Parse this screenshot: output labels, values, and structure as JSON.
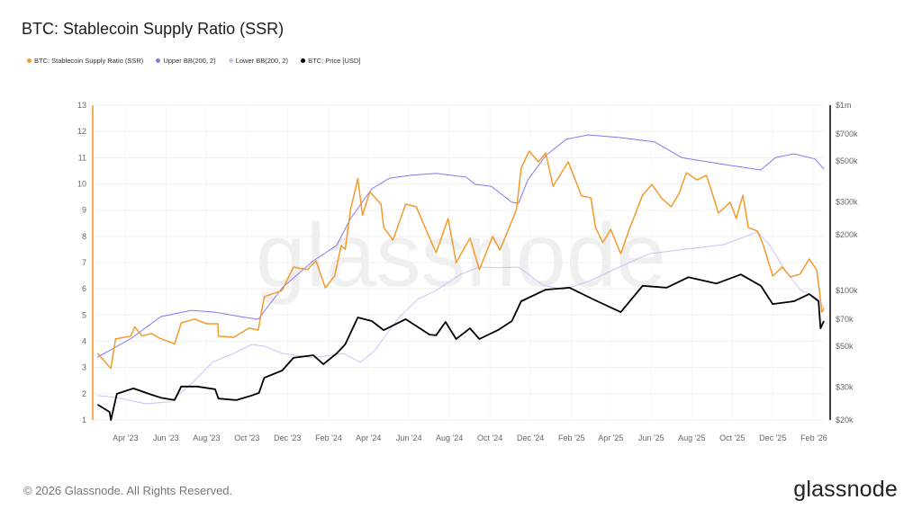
{
  "title": "BTC: Stablecoin Supply Ratio (SSR)",
  "legend": [
    {
      "label": "BTC: Stablecoin Supply Ratio (SSR)",
      "color": "#f39a2c"
    },
    {
      "label": "Upper BB(200, 2)",
      "color": "#8378ef"
    },
    {
      "label": "Lower BB(200, 2)",
      "color": "#c9c3f7"
    },
    {
      "label": "BTC: Price [USD]",
      "color": "#000000"
    }
  ],
  "footer": {
    "copyright": "© 2026 Glassnode. All Rights Reserved.",
    "logo": "glassnode"
  },
  "watermark": "glassnode",
  "chart_data": {
    "type": "line",
    "title": "BTC: Stablecoin Supply Ratio (SSR)",
    "x_range": [
      "2023-02-12",
      "2026-02-16"
    ],
    "x_ticks": [
      {
        "date": "2023-04-01",
        "label": "Apr '23"
      },
      {
        "date": "2023-06-01",
        "label": "Jun '23"
      },
      {
        "date": "2023-08-01",
        "label": "Aug '23"
      },
      {
        "date": "2023-10-01",
        "label": "Oct '23"
      },
      {
        "date": "2023-12-01",
        "label": "Dec '23"
      },
      {
        "date": "2024-02-01",
        "label": "Feb '24"
      },
      {
        "date": "2024-04-01",
        "label": "Apr '24"
      },
      {
        "date": "2024-06-01",
        "label": "Jun '24"
      },
      {
        "date": "2024-08-01",
        "label": "Aug '24"
      },
      {
        "date": "2024-10-01",
        "label": "Oct '24"
      },
      {
        "date": "2024-12-01",
        "label": "Dec '24"
      },
      {
        "date": "2025-02-01",
        "label": "Feb '25"
      },
      {
        "date": "2025-04-01",
        "label": "Apr '25"
      },
      {
        "date": "2025-06-01",
        "label": "Jun '25"
      },
      {
        "date": "2025-08-01",
        "label": "Aug '25"
      },
      {
        "date": "2025-10-01",
        "label": "Oct '25"
      },
      {
        "date": "2025-12-01",
        "label": "Dec '25"
      },
      {
        "date": "2026-02-01",
        "label": "Feb '26"
      }
    ],
    "y_left": {
      "range": [
        1,
        13
      ],
      "ticks": [
        "1",
        "2",
        "3",
        "4",
        "5",
        "6",
        "7",
        "8",
        "9",
        "10",
        "11",
        "12",
        "13"
      ],
      "color": "#f39a2c"
    },
    "y_right": {
      "scale": "log",
      "range": [
        20000,
        1000000
      ],
      "ticks": [
        {
          "v": 20000,
          "label": "$20k"
        },
        {
          "v": 30000,
          "label": "$30k"
        },
        {
          "v": 50000,
          "label": "$50k"
        },
        {
          "v": 70000,
          "label": "$70k"
        },
        {
          "v": 100000,
          "label": "$100k"
        },
        {
          "v": 200000,
          "label": "$200k"
        },
        {
          "v": 300000,
          "label": "$300k"
        },
        {
          "v": 500000,
          "label": "$500k"
        },
        {
          "v": 700000,
          "label": "$700k"
        },
        {
          "v": 1000000,
          "label": "$1m"
        }
      ]
    },
    "grid": true,
    "legend_position": "top-left",
    "series": [
      {
        "name": "BTC: Stablecoin Supply Ratio (SSR)",
        "axis": "left",
        "color": "#f39a2c",
        "points": [
          [
            "2023-02-18",
            3.54
          ],
          [
            "2023-03-10",
            2.96
          ],
          [
            "2023-03-17",
            4.09
          ],
          [
            "2023-04-09",
            4.2
          ],
          [
            "2023-04-15",
            4.55
          ],
          [
            "2023-04-26",
            4.2
          ],
          [
            "2023-05-10",
            4.3
          ],
          [
            "2023-05-24",
            4.1
          ],
          [
            "2023-06-14",
            3.9
          ],
          [
            "2023-06-24",
            4.7
          ],
          [
            "2023-07-14",
            4.85
          ],
          [
            "2023-08-01",
            4.67
          ],
          [
            "2023-08-18",
            4.67
          ],
          [
            "2023-08-19",
            4.2
          ],
          [
            "2023-09-11",
            4.15
          ],
          [
            "2023-10-04",
            4.5
          ],
          [
            "2023-10-18",
            4.43
          ],
          [
            "2023-10-27",
            5.7
          ],
          [
            "2023-11-23",
            5.94
          ],
          [
            "2023-12-10",
            6.83
          ],
          [
            "2023-12-31",
            6.73
          ],
          [
            "2024-01-13",
            7.07
          ],
          [
            "2024-01-27",
            6.04
          ],
          [
            "2024-02-10",
            6.49
          ],
          [
            "2024-02-20",
            7.65
          ],
          [
            "2024-02-26",
            7.5
          ],
          [
            "2024-03-05",
            9.02
          ],
          [
            "2024-03-16",
            10.2
          ],
          [
            "2024-03-23",
            8.8
          ],
          [
            "2024-04-03",
            9.7
          ],
          [
            "2024-04-20",
            9.23
          ],
          [
            "2024-04-24",
            8.34
          ],
          [
            "2024-05-08",
            7.86
          ],
          [
            "2024-05-27",
            9.23
          ],
          [
            "2024-06-12",
            9.13
          ],
          [
            "2024-07-01",
            8.0
          ],
          [
            "2024-07-12",
            7.38
          ],
          [
            "2024-07-30",
            8.68
          ],
          [
            "2024-08-11",
            7.0
          ],
          [
            "2024-09-01",
            7.93
          ],
          [
            "2024-09-15",
            6.73
          ],
          [
            "2024-10-05",
            8.0
          ],
          [
            "2024-10-16",
            7.48
          ],
          [
            "2024-10-30",
            8.34
          ],
          [
            "2024-11-10",
            9.02
          ],
          [
            "2024-11-17",
            10.6
          ],
          [
            "2024-11-29",
            11.25
          ],
          [
            "2024-12-13",
            10.84
          ],
          [
            "2024-12-24",
            11.18
          ],
          [
            "2025-01-04",
            9.91
          ],
          [
            "2025-01-27",
            10.84
          ],
          [
            "2025-02-16",
            9.54
          ],
          [
            "2025-03-02",
            9.47
          ],
          [
            "2025-03-09",
            8.34
          ],
          [
            "2025-03-20",
            7.76
          ],
          [
            "2025-04-01",
            8.27
          ],
          [
            "2025-04-16",
            7.34
          ],
          [
            "2025-04-30",
            8.34
          ],
          [
            "2025-05-19",
            9.57
          ],
          [
            "2025-06-02",
            9.98
          ],
          [
            "2025-06-16",
            9.47
          ],
          [
            "2025-07-01",
            9.13
          ],
          [
            "2025-07-13",
            9.64
          ],
          [
            "2025-07-24",
            10.43
          ],
          [
            "2025-08-09",
            10.15
          ],
          [
            "2025-08-23",
            10.33
          ],
          [
            "2025-09-01",
            9.64
          ],
          [
            "2025-09-10",
            8.89
          ],
          [
            "2025-09-28",
            9.3
          ],
          [
            "2025-10-07",
            8.68
          ],
          [
            "2025-10-17",
            9.57
          ],
          [
            "2025-10-25",
            8.34
          ],
          [
            "2025-11-08",
            8.2
          ],
          [
            "2025-11-17",
            7.65
          ],
          [
            "2025-12-01",
            6.49
          ],
          [
            "2025-12-15",
            6.83
          ],
          [
            "2025-12-28",
            6.45
          ],
          [
            "2026-01-11",
            6.56
          ],
          [
            "2026-01-25",
            7.14
          ],
          [
            "2026-02-05",
            6.73
          ],
          [
            "2026-02-10",
            5.8
          ],
          [
            "2026-02-13",
            5.11
          ],
          [
            "2026-02-16",
            5.25
          ]
        ]
      },
      {
        "name": "Upper BB(200, 2)",
        "axis": "left",
        "color": "#8378ef",
        "points": [
          [
            "2023-02-18",
            3.4
          ],
          [
            "2023-04-09",
            4.1
          ],
          [
            "2023-05-24",
            4.94
          ],
          [
            "2023-07-09",
            5.18
          ],
          [
            "2023-08-14",
            5.11
          ],
          [
            "2023-09-21",
            4.94
          ],
          [
            "2023-10-18",
            4.84
          ],
          [
            "2023-11-23",
            6.04
          ],
          [
            "2024-01-09",
            7.07
          ],
          [
            "2024-02-13",
            7.65
          ],
          [
            "2024-03-05",
            8.68
          ],
          [
            "2024-04-06",
            9.81
          ],
          [
            "2024-05-03",
            10.22
          ],
          [
            "2024-06-04",
            10.33
          ],
          [
            "2024-07-12",
            10.4
          ],
          [
            "2024-08-26",
            10.26
          ],
          [
            "2024-09-09",
            9.98
          ],
          [
            "2024-10-03",
            9.91
          ],
          [
            "2024-11-03",
            9.3
          ],
          [
            "2024-11-13",
            9.26
          ],
          [
            "2024-11-27",
            10.15
          ],
          [
            "2024-12-24",
            11.08
          ],
          [
            "2025-01-24",
            11.7
          ],
          [
            "2025-02-26",
            11.87
          ],
          [
            "2025-04-14",
            11.77
          ],
          [
            "2025-06-06",
            11.6
          ],
          [
            "2025-07-17",
            11.0
          ],
          [
            "2025-09-19",
            10.74
          ],
          [
            "2025-11-13",
            10.53
          ],
          [
            "2025-12-05",
            11.0
          ],
          [
            "2026-01-02",
            11.15
          ],
          [
            "2026-02-03",
            10.95
          ],
          [
            "2026-02-16",
            10.57
          ]
        ]
      },
      {
        "name": "Lower BB(200, 2)",
        "axis": "left",
        "color": "#c9c3f7",
        "points": [
          [
            "2023-02-18",
            1.93
          ],
          [
            "2023-03-17",
            1.86
          ],
          [
            "2023-05-01",
            1.62
          ],
          [
            "2023-06-07",
            1.69
          ],
          [
            "2023-07-09",
            2.37
          ],
          [
            "2023-08-10",
            3.2
          ],
          [
            "2023-09-11",
            3.54
          ],
          [
            "2023-10-08",
            3.88
          ],
          [
            "2023-10-27",
            3.81
          ],
          [
            "2023-11-23",
            3.54
          ],
          [
            "2024-01-09",
            3.37
          ],
          [
            "2024-02-23",
            3.54
          ],
          [
            "2024-03-20",
            3.2
          ],
          [
            "2024-04-10",
            3.64
          ],
          [
            "2024-05-17",
            4.91
          ],
          [
            "2024-06-14",
            5.6
          ],
          [
            "2024-07-12",
            5.94
          ],
          [
            "2024-08-18",
            6.56
          ],
          [
            "2024-09-15",
            6.83
          ],
          [
            "2024-10-13",
            6.8
          ],
          [
            "2024-11-13",
            6.83
          ],
          [
            "2024-12-20",
            6.14
          ],
          [
            "2025-01-20",
            5.97
          ],
          [
            "2025-02-26",
            6.28
          ],
          [
            "2025-04-14",
            6.83
          ],
          [
            "2025-05-29",
            7.34
          ],
          [
            "2025-07-13",
            7.48
          ],
          [
            "2025-09-19",
            7.69
          ],
          [
            "2025-11-08",
            8.17
          ],
          [
            "2025-11-27",
            7.65
          ],
          [
            "2025-12-19",
            6.73
          ],
          [
            "2026-01-11",
            5.97
          ],
          [
            "2026-02-08",
            5.6
          ],
          [
            "2026-02-16",
            5.25
          ]
        ]
      },
      {
        "name": "BTC: Price [USD]",
        "axis": "right",
        "color": "#000000",
        "points": [
          [
            "2023-02-18",
            24200
          ],
          [
            "2023-03-08",
            22100
          ],
          [
            "2023-03-10",
            20000
          ],
          [
            "2023-03-19",
            27700
          ],
          [
            "2023-04-13",
            29600
          ],
          [
            "2023-05-06",
            27700
          ],
          [
            "2023-05-24",
            26400
          ],
          [
            "2023-06-14",
            25600
          ],
          [
            "2023-06-24",
            30300
          ],
          [
            "2023-07-18",
            30300
          ],
          [
            "2023-08-14",
            29300
          ],
          [
            "2023-08-19",
            26100
          ],
          [
            "2023-09-15",
            25600
          ],
          [
            "2023-10-08",
            27100
          ],
          [
            "2023-10-19",
            28000
          ],
          [
            "2023-10-27",
            33800
          ],
          [
            "2023-11-23",
            37000
          ],
          [
            "2023-12-10",
            43300
          ],
          [
            "2024-01-09",
            44700
          ],
          [
            "2024-01-24",
            40000
          ],
          [
            "2024-02-13",
            45700
          ],
          [
            "2024-02-26",
            51200
          ],
          [
            "2024-03-16",
            71500
          ],
          [
            "2024-04-06",
            68400
          ],
          [
            "2024-04-24",
            61100
          ],
          [
            "2024-05-27",
            70000
          ],
          [
            "2024-07-02",
            57800
          ],
          [
            "2024-07-12",
            57300
          ],
          [
            "2024-07-26",
            67600
          ],
          [
            "2024-08-11",
            54700
          ],
          [
            "2024-09-01",
            62500
          ],
          [
            "2024-09-15",
            54700
          ],
          [
            "2024-10-13",
            61100
          ],
          [
            "2024-11-03",
            68400
          ],
          [
            "2024-11-17",
            87500
          ],
          [
            "2024-12-24",
            101000
          ],
          [
            "2025-01-29",
            103500
          ],
          [
            "2025-03-06",
            89400
          ],
          [
            "2025-04-16",
            76400
          ],
          [
            "2025-05-19",
            106000
          ],
          [
            "2025-06-24",
            103500
          ],
          [
            "2025-07-27",
            118000
          ],
          [
            "2025-09-07",
            109000
          ],
          [
            "2025-10-14",
            122000
          ],
          [
            "2025-11-13",
            106000
          ],
          [
            "2025-12-01",
            84500
          ],
          [
            "2026-01-02",
            87500
          ],
          [
            "2026-01-25",
            95700
          ],
          [
            "2026-02-08",
            87500
          ],
          [
            "2026-02-11",
            62500
          ],
          [
            "2026-02-16",
            68400
          ]
        ]
      }
    ]
  }
}
